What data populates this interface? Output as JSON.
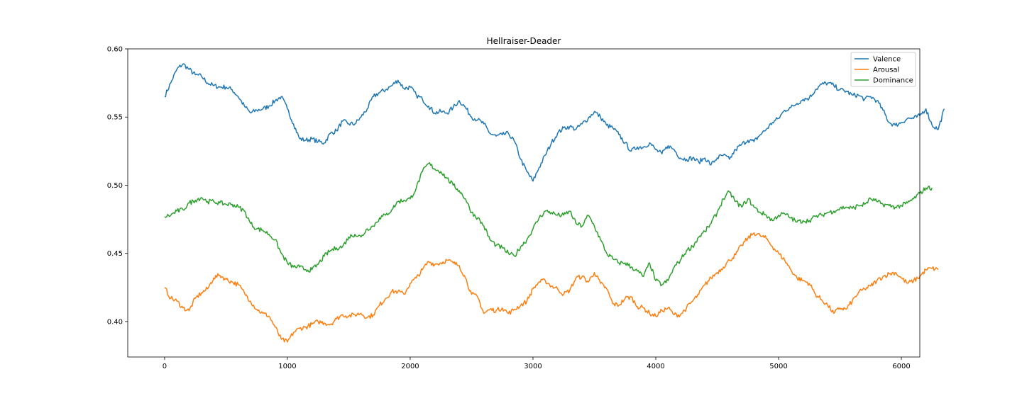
{
  "chart_data": {
    "type": "line",
    "title": "Hellraiser-Deader",
    "xlabel": "",
    "ylabel": "",
    "xlim": [
      -300,
      6150
    ],
    "ylim": [
      0.374,
      0.6
    ],
    "xticks": [
      0,
      1000,
      2000,
      3000,
      4000,
      5000,
      6000
    ],
    "xtick_labels": [
      "0",
      "1000",
      "2000",
      "3000",
      "4000",
      "5000",
      "6000"
    ],
    "yticks": [
      0.4,
      0.45,
      0.5,
      0.55,
      0.6
    ],
    "ytick_labels": [
      "0.40",
      "0.45",
      "0.50",
      "0.55",
      "0.60"
    ],
    "grid": false,
    "legend_position": "top-right",
    "colors": {
      "Valence": "#1f77b4",
      "Arousal": "#ff7f0e",
      "Dominance": "#2ca02c"
    },
    "x_step": 50,
    "series": [
      {
        "name": "Valence",
        "color": "#1f77b4",
        "values": [
          0.565,
          0.575,
          0.585,
          0.589,
          0.585,
          0.581,
          0.58,
          0.575,
          0.573,
          0.572,
          0.572,
          0.57,
          0.565,
          0.558,
          0.553,
          0.555,
          0.556,
          0.558,
          0.562,
          0.565,
          0.556,
          0.545,
          0.534,
          0.533,
          0.534,
          0.532,
          0.531,
          0.538,
          0.54,
          0.547,
          0.545,
          0.545,
          0.55,
          0.556,
          0.565,
          0.568,
          0.57,
          0.573,
          0.577,
          0.571,
          0.572,
          0.566,
          0.563,
          0.558,
          0.553,
          0.554,
          0.553,
          0.557,
          0.562,
          0.557,
          0.55,
          0.548,
          0.545,
          0.538,
          0.536,
          0.537,
          0.538,
          0.532,
          0.519,
          0.51,
          0.503,
          0.513,
          0.522,
          0.531,
          0.538,
          0.542,
          0.543,
          0.541,
          0.545,
          0.549,
          0.554,
          0.55,
          0.544,
          0.542,
          0.537,
          0.531,
          0.525,
          0.528,
          0.528,
          0.531,
          0.526,
          0.523,
          0.529,
          0.526,
          0.52,
          0.519,
          0.52,
          0.517,
          0.52,
          0.515,
          0.52,
          0.522,
          0.519,
          0.526,
          0.53,
          0.533,
          0.532,
          0.537,
          0.541,
          0.546,
          0.549,
          0.555,
          0.557,
          0.56,
          0.563,
          0.564,
          0.57,
          0.574,
          0.575,
          0.573,
          0.57,
          0.569,
          0.566,
          0.566,
          0.563,
          0.565,
          0.562,
          0.555,
          0.546,
          0.544,
          0.546,
          0.549,
          0.549,
          0.551,
          0.556,
          0.544,
          0.541,
          0.556
        ]
      },
      {
        "name": "Arousal",
        "color": "#ff7f0e",
        "values": [
          0.425,
          0.417,
          0.415,
          0.41,
          0.408,
          0.417,
          0.421,
          0.424,
          0.432,
          0.434,
          0.431,
          0.429,
          0.427,
          0.421,
          0.415,
          0.409,
          0.406,
          0.404,
          0.396,
          0.387,
          0.385,
          0.392,
          0.395,
          0.396,
          0.398,
          0.4,
          0.399,
          0.398,
          0.402,
          0.405,
          0.404,
          0.405,
          0.406,
          0.403,
          0.405,
          0.412,
          0.417,
          0.422,
          0.422,
          0.42,
          0.428,
          0.432,
          0.438,
          0.444,
          0.442,
          0.443,
          0.445,
          0.443,
          0.441,
          0.432,
          0.42,
          0.418,
          0.406,
          0.409,
          0.408,
          0.41,
          0.406,
          0.409,
          0.412,
          0.415,
          0.424,
          0.429,
          0.43,
          0.426,
          0.424,
          0.42,
          0.423,
          0.432,
          0.433,
          0.429,
          0.436,
          0.428,
          0.424,
          0.413,
          0.412,
          0.417,
          0.418,
          0.411,
          0.41,
          0.406,
          0.404,
          0.408,
          0.41,
          0.405,
          0.405,
          0.41,
          0.415,
          0.42,
          0.427,
          0.432,
          0.436,
          0.44,
          0.445,
          0.449,
          0.456,
          0.461,
          0.465,
          0.463,
          0.461,
          0.455,
          0.45,
          0.445,
          0.438,
          0.432,
          0.43,
          0.428,
          0.42,
          0.416,
          0.412,
          0.406,
          0.41,
          0.409,
          0.415,
          0.421,
          0.424,
          0.426,
          0.43,
          0.433,
          0.435,
          0.436,
          0.432,
          0.428,
          0.43,
          0.433,
          0.438,
          0.439,
          0.438
        ]
      },
      {
        "name": "Dominance",
        "color": "#2ca02c",
        "values": [
          0.477,
          0.478,
          0.481,
          0.482,
          0.487,
          0.489,
          0.491,
          0.488,
          0.488,
          0.487,
          0.486,
          0.486,
          0.484,
          0.481,
          0.472,
          0.468,
          0.467,
          0.464,
          0.46,
          0.45,
          0.443,
          0.44,
          0.44,
          0.438,
          0.438,
          0.442,
          0.448,
          0.452,
          0.454,
          0.455,
          0.462,
          0.464,
          0.462,
          0.468,
          0.47,
          0.476,
          0.478,
          0.482,
          0.488,
          0.489,
          0.49,
          0.498,
          0.51,
          0.516,
          0.512,
          0.51,
          0.505,
          0.5,
          0.496,
          0.49,
          0.48,
          0.476,
          0.47,
          0.46,
          0.456,
          0.454,
          0.45,
          0.448,
          0.455,
          0.46,
          0.468,
          0.476,
          0.481,
          0.48,
          0.478,
          0.478,
          0.481,
          0.472,
          0.47,
          0.478,
          0.47,
          0.46,
          0.45,
          0.446,
          0.443,
          0.443,
          0.44,
          0.437,
          0.433,
          0.443,
          0.43,
          0.427,
          0.43,
          0.44,
          0.445,
          0.452,
          0.455,
          0.462,
          0.466,
          0.472,
          0.48,
          0.49,
          0.495,
          0.488,
          0.484,
          0.49,
          0.484,
          0.48,
          0.478,
          0.474,
          0.478,
          0.479,
          0.476,
          0.473,
          0.474,
          0.474,
          0.477,
          0.478,
          0.48,
          0.481,
          0.483,
          0.484,
          0.483,
          0.485,
          0.486,
          0.49,
          0.488,
          0.486,
          0.485,
          0.484,
          0.485,
          0.487,
          0.49,
          0.494,
          0.498,
          0.498
        ]
      }
    ]
  }
}
